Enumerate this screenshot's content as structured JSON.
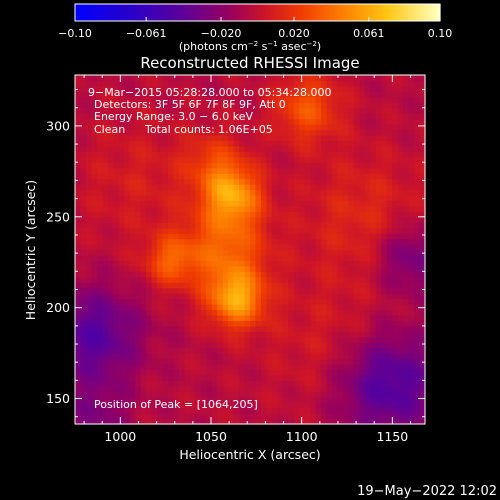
{
  "chart_data": {
    "type": "heatmap",
    "title": "Reconstructed RHESSI Image",
    "xlabel": "Heliocentric X (arcsec)",
    "ylabel": "Heliocentric Y (arcsec)",
    "xlim": [
      975,
      1168
    ],
    "ylim": [
      136,
      328
    ],
    "x_ticks": [
      1000,
      1050,
      1100,
      1150
    ],
    "y_ticks": [
      150,
      200,
      250,
      300
    ],
    "colorbar": {
      "range": [
        -0.1,
        0.1
      ],
      "tick_values": [
        -0.1,
        -0.061,
        -0.02,
        0.02,
        0.061,
        0.1
      ],
      "tick_labels": [
        "−0.10",
        "−0.061",
        "−0.020",
        "0.020",
        "0.061",
        "0.10"
      ],
      "unit_text": "(photons cm",
      "unit_exp1": "−2",
      "unit_mid": " s",
      "unit_exp2": "−1",
      "unit_mid2": " asec",
      "unit_exp3": "−2",
      "unit_close": ")",
      "colormap": "rhessi-3"
    },
    "annotations": {
      "line1": "9−Mar−2015 05:28:28.000 to 05:34:28.000",
      "line2": "Detectors: 3F 5F 6F 7F 8F 9F, Att 0",
      "line3": "Energy Range: 3.0 − 6.0 keV",
      "line4_left": "Clean",
      "line4_right": "Total counts: 1.06E+05",
      "peak": "Position of Peak = [1064,205]"
    },
    "peak": {
      "x": 1064,
      "y": 205,
      "value": 0.1
    },
    "sources": [
      {
        "x": 1064,
        "y": 205,
        "amp": 0.06,
        "sigma": 11
      },
      {
        "x": 1062,
        "y": 262,
        "amp": 0.055,
        "sigma": 11
      },
      {
        "x": 1058,
        "y": 233,
        "amp": 0.04,
        "sigma": 16
      },
      {
        "x": 1052,
        "y": 280,
        "amp": 0.025,
        "sigma": 12
      },
      {
        "x": 1028,
        "y": 226,
        "amp": 0.035,
        "sigma": 10
      },
      {
        "x": 1103,
        "y": 310,
        "amp": 0.035,
        "sigma": 13
      },
      {
        "x": 1135,
        "y": 250,
        "amp": 0.018,
        "sigma": 25
      },
      {
        "x": 1115,
        "y": 180,
        "amp": 0.012,
        "sigma": 25
      },
      {
        "x": 1010,
        "y": 270,
        "amp": 0.012,
        "sigma": 25
      }
    ],
    "troughs": [
      {
        "x": 985,
        "y": 185,
        "amp": 0.04,
        "sigma": 18
      },
      {
        "x": 1148,
        "y": 158,
        "amp": 0.045,
        "sigma": 20
      },
      {
        "x": 1160,
        "y": 228,
        "amp": 0.03,
        "sigma": 14
      },
      {
        "x": 985,
        "y": 140,
        "amp": 0.02,
        "sigma": 14
      }
    ]
  },
  "footer": {
    "timestamp": "19−May−2022 12:02"
  }
}
